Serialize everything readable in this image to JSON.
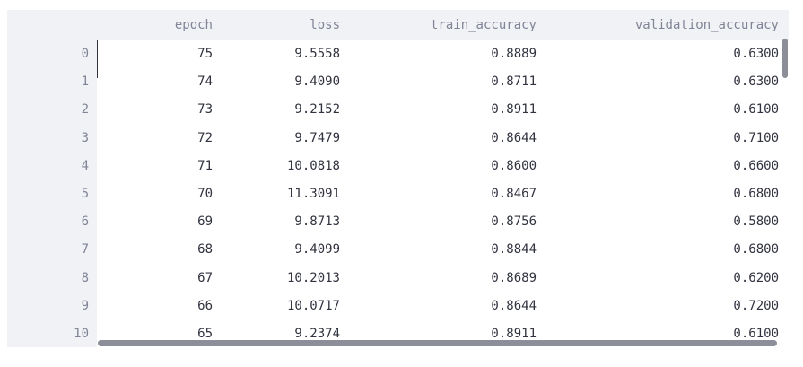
{
  "table": {
    "columns": [
      "epoch",
      "loss",
      "train_accuracy",
      "validation_accuracy"
    ],
    "rows": [
      {
        "index": "0",
        "values": [
          "75",
          "9.5558",
          "0.8889",
          "0.6300"
        ]
      },
      {
        "index": "1",
        "values": [
          "74",
          "9.4090",
          "0.8711",
          "0.6300"
        ]
      },
      {
        "index": "2",
        "values": [
          "73",
          "9.2152",
          "0.8911",
          "0.6100"
        ]
      },
      {
        "index": "3",
        "values": [
          "72",
          "9.7479",
          "0.8644",
          "0.7100"
        ]
      },
      {
        "index": "4",
        "values": [
          "71",
          "10.0818",
          "0.8600",
          "0.6600"
        ]
      },
      {
        "index": "5",
        "values": [
          "70",
          "11.3091",
          "0.8467",
          "0.6800"
        ]
      },
      {
        "index": "6",
        "values": [
          "69",
          "9.8713",
          "0.8756",
          "0.5800"
        ]
      },
      {
        "index": "7",
        "values": [
          "68",
          "9.4099",
          "0.8844",
          "0.6800"
        ]
      },
      {
        "index": "8",
        "values": [
          "67",
          "10.2013",
          "0.8689",
          "0.6200"
        ]
      },
      {
        "index": "9",
        "values": [
          "66",
          "10.0717",
          "0.8644",
          "0.7200"
        ]
      },
      {
        "index": "10",
        "values": [
          "65",
          "9.2374",
          "0.8911",
          "0.6100"
        ]
      }
    ]
  },
  "colors": {
    "header_bg": "#f0f2f6",
    "header_text": "#808495",
    "cell_text": "#31333f",
    "scrollbar": "#8c8e99"
  }
}
